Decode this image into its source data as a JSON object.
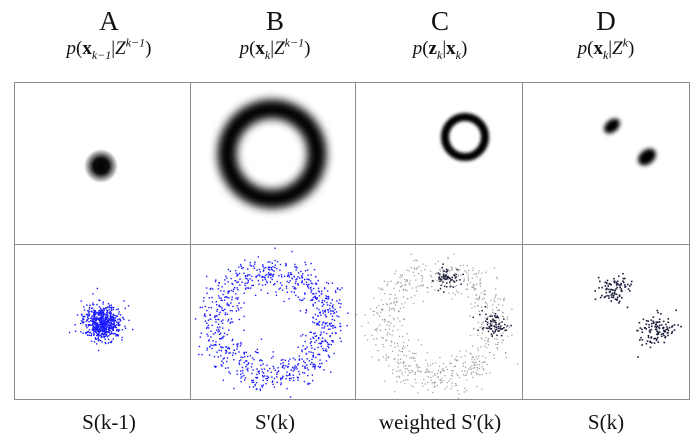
{
  "columns": [
    {
      "letter": "A",
      "formula": {
        "var": "x",
        "var_sub": "k−1",
        "cond": "Z",
        "cond_sup": "k−1"
      },
      "caption": "S(k-1)"
    },
    {
      "letter": "B",
      "formula": {
        "var": "x",
        "var_sub": "k",
        "cond": "Z",
        "cond_sup": "k−1"
      },
      "caption": "S'(k)"
    },
    {
      "letter": "C",
      "formula": {
        "var": "z",
        "var_sub": "k",
        "cond": "x",
        "cond_sup": "",
        "cond_sub": "k"
      },
      "caption": "weighted S'(k)"
    },
    {
      "letter": "D",
      "formula": {
        "var": "x",
        "var_sub": "k",
        "cond": "Z",
        "cond_sup": "k"
      },
      "caption": "S(k)"
    }
  ],
  "colors": {
    "density": "#000000",
    "samples_blue": "#1a1aff",
    "samples_dark": "#1b1b3a",
    "samples_gray": "#9a9a9a",
    "grid": "#8a8a8a"
  }
}
